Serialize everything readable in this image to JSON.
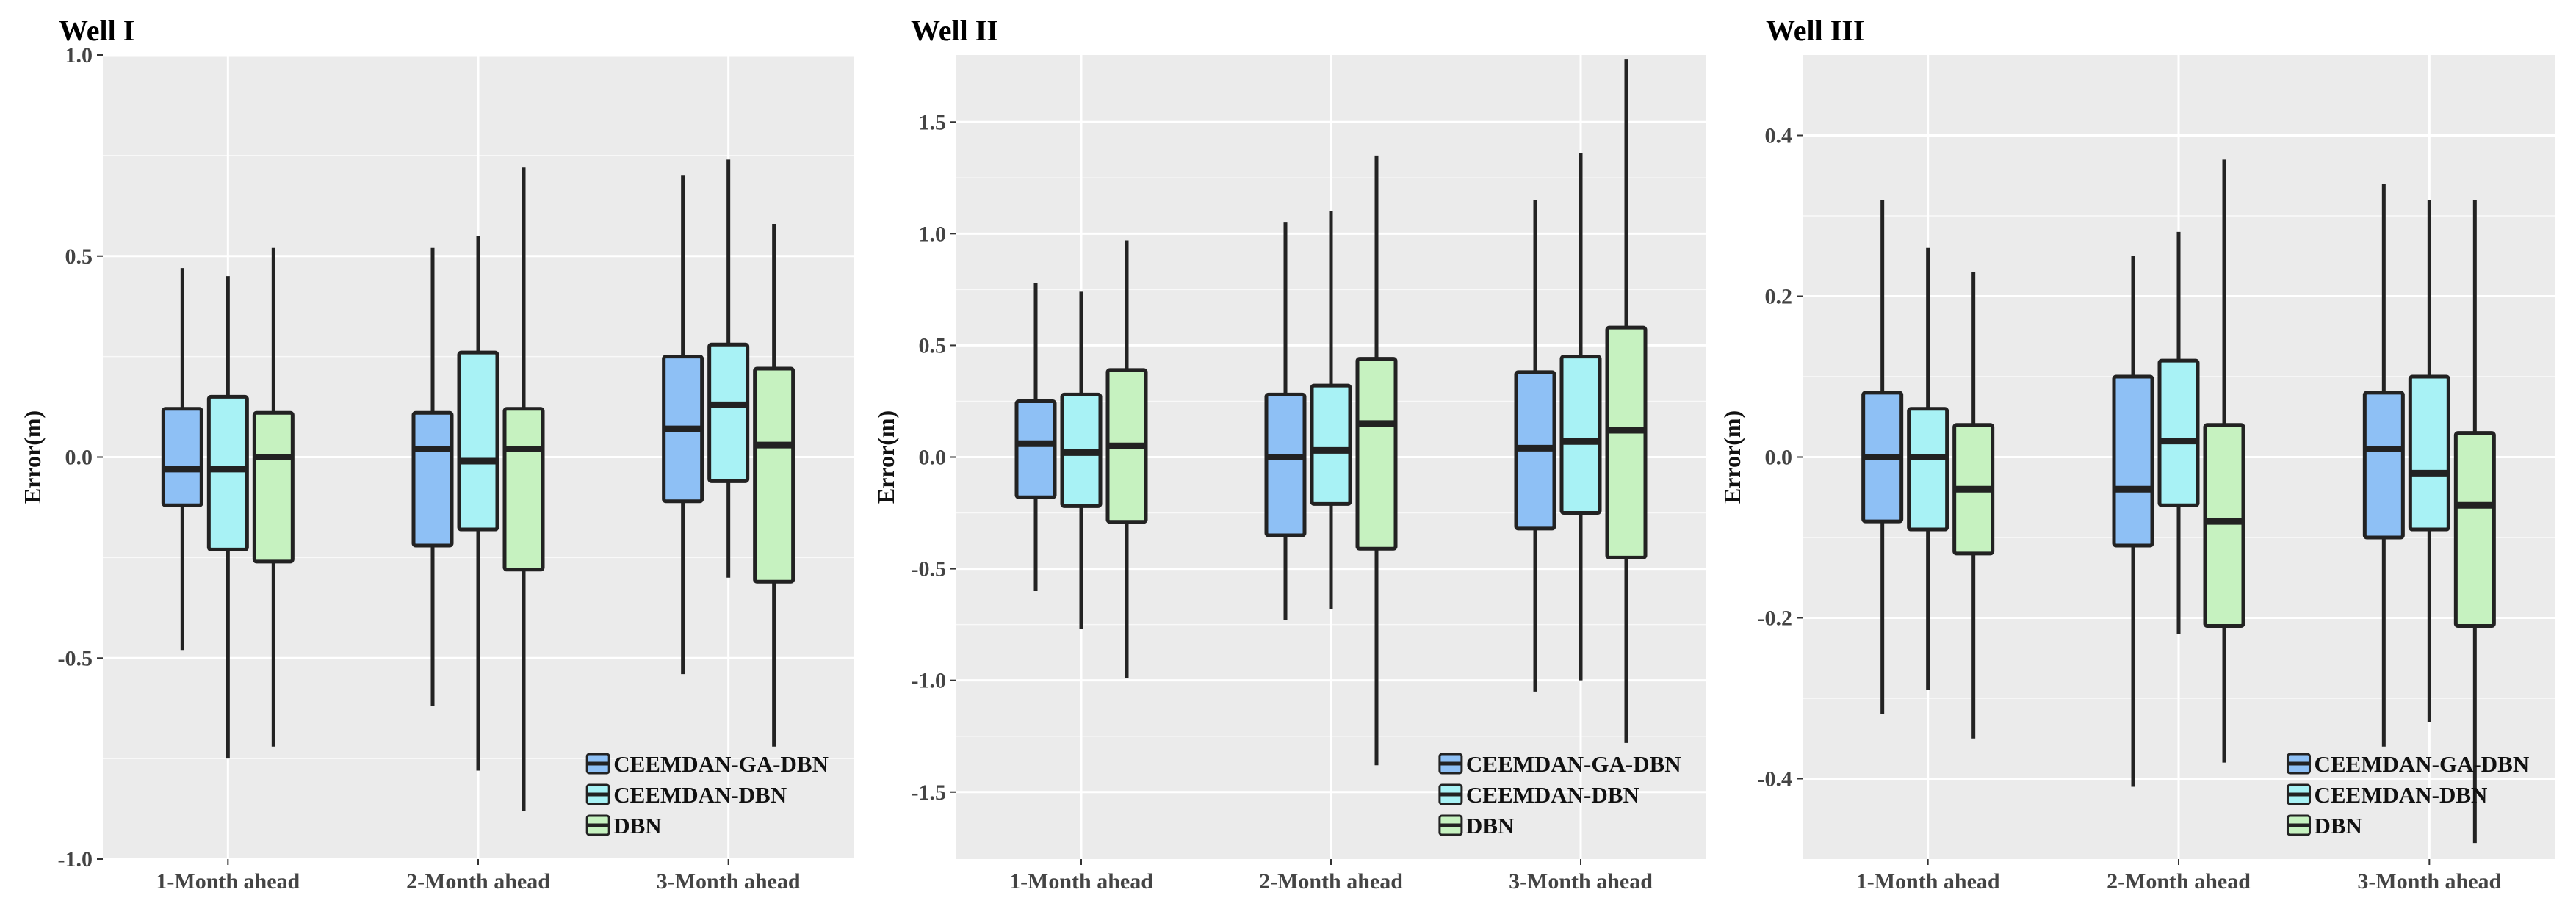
{
  "chart_data": [
    {
      "type": "box",
      "title": "Well I",
      "ylabel": "Error(m)",
      "ylim": [
        -1.0,
        1.0
      ],
      "yticks": [
        -1.0,
        -0.5,
        0.0,
        0.5,
        1.0
      ],
      "ytick_labels": [
        "-1.0",
        "-0.5",
        "0.0",
        "0.5",
        "1.0"
      ],
      "categories": [
        "1-Month ahead",
        "2-Month ahead",
        "3-Month ahead"
      ],
      "series": [
        {
          "name": "CEEMDAN-GA-DBN",
          "color": "#8EC0F5",
          "boxes": [
            {
              "whisker_low": -0.48,
              "q1": -0.12,
              "median": -0.03,
              "q3": 0.12,
              "whisker_high": 0.47
            },
            {
              "whisker_low": -0.62,
              "q1": -0.22,
              "median": 0.02,
              "q3": 0.11,
              "whisker_high": 0.52
            },
            {
              "whisker_low": -0.54,
              "q1": -0.11,
              "median": 0.07,
              "q3": 0.25,
              "whisker_high": 0.7
            }
          ]
        },
        {
          "name": "CEEMDAN-DBN",
          "color": "#A8F2F5",
          "boxes": [
            {
              "whisker_low": -0.75,
              "q1": -0.23,
              "median": -0.03,
              "q3": 0.15,
              "whisker_high": 0.45
            },
            {
              "whisker_low": -0.78,
              "q1": -0.18,
              "median": -0.01,
              "q3": 0.26,
              "whisker_high": 0.55
            },
            {
              "whisker_low": -0.3,
              "q1": -0.06,
              "median": 0.13,
              "q3": 0.28,
              "whisker_high": 0.74
            }
          ]
        },
        {
          "name": "DBN",
          "color": "#C6F2C0",
          "boxes": [
            {
              "whisker_low": -0.72,
              "q1": -0.26,
              "median": 0.0,
              "q3": 0.11,
              "whisker_high": 0.52
            },
            {
              "whisker_low": -0.88,
              "q1": -0.28,
              "median": 0.02,
              "q3": 0.12,
              "whisker_high": 0.72
            },
            {
              "whisker_low": -0.72,
              "q1": -0.31,
              "median": 0.03,
              "q3": 0.22,
              "whisker_high": 0.58
            }
          ]
        }
      ]
    },
    {
      "type": "box",
      "title": "Well II",
      "ylabel": "Error(m)",
      "ylim": [
        -1.8,
        1.8
      ],
      "yticks": [
        -1.5,
        -1.0,
        -0.5,
        0.0,
        0.5,
        1.0,
        1.5
      ],
      "ytick_labels": [
        "-1.5",
        "-1.0",
        "-0.5",
        "0.0",
        "0.5",
        "1.0",
        "1.5"
      ],
      "categories": [
        "1-Month ahead",
        "2-Month ahead",
        "3-Month ahead"
      ],
      "series": [
        {
          "name": "CEEMDAN-GA-DBN",
          "color": "#8EC0F5",
          "boxes": [
            {
              "whisker_low": -0.6,
              "q1": -0.18,
              "median": 0.06,
              "q3": 0.25,
              "whisker_high": 0.78
            },
            {
              "whisker_low": -0.73,
              "q1": -0.35,
              "median": 0.0,
              "q3": 0.28,
              "whisker_high": 1.05
            },
            {
              "whisker_low": -1.05,
              "q1": -0.32,
              "median": 0.04,
              "q3": 0.38,
              "whisker_high": 1.15
            }
          ]
        },
        {
          "name": "CEEMDAN-DBN",
          "color": "#A8F2F5",
          "boxes": [
            {
              "whisker_low": -0.77,
              "q1": -0.22,
              "median": 0.02,
              "q3": 0.28,
              "whisker_high": 0.74
            },
            {
              "whisker_low": -0.68,
              "q1": -0.21,
              "median": 0.03,
              "q3": 0.32,
              "whisker_high": 1.1
            },
            {
              "whisker_low": -1.0,
              "q1": -0.25,
              "median": 0.07,
              "q3": 0.45,
              "whisker_high": 1.36
            }
          ]
        },
        {
          "name": "DBN",
          "color": "#C6F2C0",
          "boxes": [
            {
              "whisker_low": -0.99,
              "q1": -0.29,
              "median": 0.05,
              "q3": 0.39,
              "whisker_high": 0.97
            },
            {
              "whisker_low": -1.38,
              "q1": -0.41,
              "median": 0.15,
              "q3": 0.44,
              "whisker_high": 1.35
            },
            {
              "whisker_low": -1.28,
              "q1": -0.45,
              "median": 0.12,
              "q3": 0.58,
              "whisker_high": 1.78
            }
          ]
        }
      ]
    },
    {
      "type": "box",
      "title": "Well III",
      "ylabel": "Error(m)",
      "ylim": [
        -0.5,
        0.5
      ],
      "yticks": [
        -0.4,
        -0.2,
        0.0,
        0.2,
        0.4
      ],
      "ytick_labels": [
        "-0.4",
        "-0.2",
        "0.0",
        "0.2",
        "0.4"
      ],
      "categories": [
        "1-Month ahead",
        "2-Month ahead",
        "3-Month ahead"
      ],
      "series": [
        {
          "name": "CEEMDAN-GA-DBN",
          "color": "#8EC0F5",
          "boxes": [
            {
              "whisker_low": -0.32,
              "q1": -0.08,
              "median": 0.0,
              "q3": 0.08,
              "whisker_high": 0.32
            },
            {
              "whisker_low": -0.41,
              "q1": -0.11,
              "median": -0.04,
              "q3": 0.1,
              "whisker_high": 0.25
            },
            {
              "whisker_low": -0.36,
              "q1": -0.1,
              "median": 0.01,
              "q3": 0.08,
              "whisker_high": 0.34
            }
          ]
        },
        {
          "name": "CEEMDAN-DBN",
          "color": "#A8F2F5",
          "boxes": [
            {
              "whisker_low": -0.29,
              "q1": -0.09,
              "median": 0.0,
              "q3": 0.06,
              "whisker_high": 0.26
            },
            {
              "whisker_low": -0.22,
              "q1": -0.06,
              "median": 0.02,
              "q3": 0.12,
              "whisker_high": 0.28
            },
            {
              "whisker_low": -0.33,
              "q1": -0.09,
              "median": -0.02,
              "q3": 0.1,
              "whisker_high": 0.32
            }
          ]
        },
        {
          "name": "DBN",
          "color": "#C6F2C0",
          "boxes": [
            {
              "whisker_low": -0.35,
              "q1": -0.12,
              "median": -0.04,
              "q3": 0.04,
              "whisker_high": 0.23
            },
            {
              "whisker_low": -0.38,
              "q1": -0.21,
              "median": -0.08,
              "q3": 0.04,
              "whisker_high": 0.37
            },
            {
              "whisker_low": -0.48,
              "q1": -0.21,
              "median": -0.06,
              "q3": 0.03,
              "whisker_high": 0.32
            }
          ]
        }
      ]
    }
  ],
  "legend": {
    "position": "bottom-right",
    "items": [
      {
        "label": "CEEMDAN-GA-DBN",
        "color": "#8EC0F5"
      },
      {
        "label": "CEEMDAN-DBN",
        "color": "#A8F2F5"
      },
      {
        "label": "DBN",
        "color": "#C6F2C0"
      }
    ]
  },
  "style": {
    "panel_background": "#EBEBEB",
    "grid_color": "#FFFFFF",
    "box_edge_color": "#222222",
    "axis_tick_color": "#333333"
  }
}
